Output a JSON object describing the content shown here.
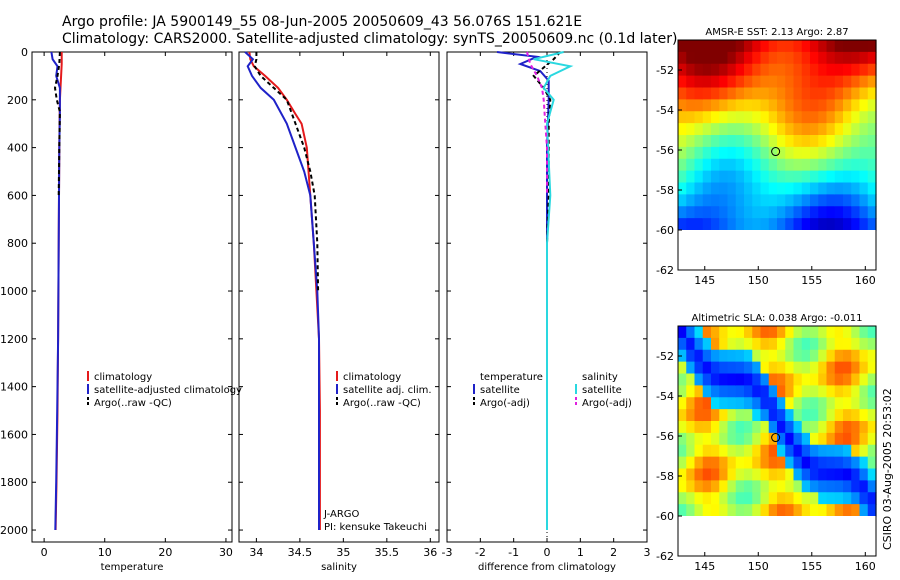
{
  "header": {
    "line1": "Argo profile: JA 5900149_55 08-Jun-2005 20050609_43 56.076S 151.621E",
    "line2": "Climatology: CARS2000. Satellite-adjusted climatology: synTS_20050609.nc (0.1d later)"
  },
  "credit": "CSIRO 03-Aug-2005 20:53:02",
  "colors": {
    "climatology": "#e41a1c",
    "satellite": "#1f22c8",
    "argo": "#000000",
    "satellite_salinity": "#2ad8e0",
    "argo_salinity_adj": "#e01fe0"
  },
  "chart_data": [
    {
      "type": "line",
      "panel": "temperature",
      "title": "",
      "xlabel": "temperature",
      "ylabel": "",
      "xlim": [
        -2,
        31
      ],
      "ylim": [
        2050,
        0
      ],
      "xticks": [
        "0",
        "10",
        "20",
        "30"
      ],
      "yticks": [
        "0",
        "200",
        "400",
        "600",
        "800",
        "1000",
        "1200",
        "1400",
        "1600",
        "1800",
        "2000"
      ],
      "legend": [
        "climatology",
        "satellite-adjusted climatology",
        "Argo(..raw -QC)"
      ],
      "legend_position": "center-right",
      "series": [
        {
          "name": "climatology",
          "x": [
            2.9,
            2.9,
            2.8,
            2.6,
            2.5,
            2.4,
            2.3,
            2.2,
            2.05,
            1.9
          ],
          "y": [
            0,
            50,
            100,
            200,
            400,
            800,
            1200,
            1500,
            1800,
            2000
          ]
        },
        {
          "name": "satellite-adjusted climatology",
          "x": [
            1.2,
            1.4,
            2.2,
            2.0,
            2.6,
            2.6,
            2.5,
            2.4,
            2.3,
            2.15,
            2.0,
            1.85
          ],
          "y": [
            0,
            30,
            60,
            100,
            150,
            250,
            400,
            800,
            1200,
            1500,
            1800,
            2000
          ]
        },
        {
          "name": "Argo(..raw -QC)",
          "x": [
            2.6,
            2.5,
            2.2,
            1.8,
            2.1,
            2.6,
            2.5,
            2.4
          ],
          "y": [
            0,
            50,
            100,
            150,
            200,
            250,
            400,
            600
          ]
        }
      ]
    },
    {
      "type": "line",
      "panel": "salinity",
      "title": "",
      "xlabel": "salinity",
      "xlim": [
        33.8,
        36.1
      ],
      "ylim": [
        2050,
        0
      ],
      "xticks": [
        "34",
        "34.5",
        "35",
        "35.5",
        "36"
      ],
      "legend": [
        "climatology",
        "satellite adj. clim.",
        "Argo(..raw -QC)"
      ],
      "legend_position": "center-right",
      "annotations": [
        "J-ARGO",
        "PI: kensuke Takeuchi"
      ],
      "series": [
        {
          "name": "climatology",
          "x": [
            33.92,
            33.93,
            33.97,
            34.1,
            34.25,
            34.35,
            34.45,
            34.52,
            34.58,
            34.62,
            34.66,
            34.69,
            34.72,
            34.73,
            34.73
          ],
          "y": [
            0,
            30,
            60,
            100,
            150,
            200,
            260,
            300,
            400,
            600,
            800,
            1000,
            1200,
            1500,
            2000
          ]
        },
        {
          "name": "satellite adj. clim.",
          "x": [
            33.87,
            33.96,
            33.9,
            33.95,
            34.05,
            34.2,
            34.35,
            34.45,
            34.55,
            34.62,
            34.66,
            34.7,
            34.72,
            34.72,
            34.72
          ],
          "y": [
            0,
            30,
            60,
            100,
            150,
            200,
            300,
            400,
            500,
            600,
            800,
            1000,
            1200,
            1500,
            2000
          ]
        },
        {
          "name": "Argo(..raw -QC)",
          "x": [
            34.0,
            34.0,
            33.98,
            34.05,
            34.2,
            34.35,
            34.45,
            34.55,
            34.62,
            34.67,
            34.7,
            34.71
          ],
          "y": [
            0,
            30,
            60,
            100,
            150,
            200,
            300,
            400,
            500,
            600,
            800,
            1000
          ]
        }
      ]
    },
    {
      "type": "line",
      "panel": "difference",
      "title": "",
      "xlabel": "difference from climatology",
      "xlim": [
        -3,
        3
      ],
      "ylim": [
        2050,
        0
      ],
      "xticks": [
        "-3",
        "-2",
        "-1",
        "0",
        "1",
        "2",
        "3"
      ],
      "legend_temperature": [
        "temperature",
        "satellite",
        "Argo(-adj)"
      ],
      "legend_salinity": [
        "salinity",
        "satellite",
        "Argo(-adj)"
      ],
      "legend_position": "center",
      "series": [
        {
          "name": "temperature satellite",
          "x": [
            -1.5,
            -0.3,
            -0.8,
            -0.2,
            0.05,
            0.05,
            0.0,
            0.0,
            0.0
          ],
          "y": [
            0,
            20,
            50,
            80,
            120,
            200,
            400,
            1000,
            2000
          ]
        },
        {
          "name": "temperature Argo(-adj)",
          "x": [
            0.4,
            0.2,
            -0.4,
            -0.1,
            0.1,
            0.05,
            0.05,
            0.05,
            0.0
          ],
          "y": [
            0,
            30,
            100,
            150,
            200,
            300,
            400,
            600,
            800
          ]
        },
        {
          "name": "salinity satellite",
          "x": [
            0.5,
            -0.4,
            0.7,
            0.1,
            -0.1,
            0.2,
            0.0,
            0.1,
            0.0,
            0.0
          ],
          "y": [
            0,
            30,
            60,
            100,
            150,
            200,
            300,
            600,
            800,
            2000
          ]
        },
        {
          "name": "salinity Argo(-adj)",
          "x": [
            -0.6,
            -0.5,
            -0.3,
            -0.15,
            -0.1,
            -0.05,
            0.0,
            0.0
          ],
          "y": [
            0,
            50,
            100,
            150,
            200,
            300,
            400,
            600
          ]
        }
      ]
    },
    {
      "type": "heatmap",
      "panel": "amsr-sst-map",
      "title": "AMSR-E SST: 2.13 Argo: 2.87",
      "xlim": [
        142.5,
        161
      ],
      "ylim": [
        -62,
        -50.5
      ],
      "xticks": [
        "145",
        "150",
        "155",
        "160"
      ],
      "yticks": [
        "-52",
        "-54",
        "-56",
        "-58",
        "-60",
        "-62"
      ],
      "argo_position": [
        151.621,
        -56.076
      ]
    },
    {
      "type": "heatmap",
      "panel": "altimetric-sla-map",
      "title": "Altimetric SLA: 0.038 Argo: -0.011",
      "xlim": [
        142.5,
        161
      ],
      "ylim": [
        -62,
        -50.5
      ],
      "xticks": [
        "145",
        "150",
        "155",
        "160"
      ],
      "yticks": [
        "-52",
        "-54",
        "-56",
        "-58",
        "-60",
        "-62"
      ],
      "argo_position": [
        151.621,
        -56.076
      ]
    }
  ]
}
